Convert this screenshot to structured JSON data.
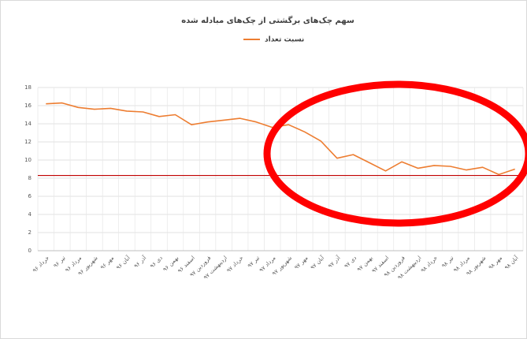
{
  "chart_data": {
    "type": "line",
    "title": "سهم چک‌های برگشتی از چک‌های مبادله شده",
    "categories": [
      "خرداد ۹۶",
      "تیر ۹۶",
      "مرداد ۹۶",
      "شهریور ۹۶",
      "مهر ۹۶",
      "آبان ۹۶",
      "آذر ۹۶",
      "دی ۹۶",
      "بهمن ۹۶",
      "اسفند ۹۶",
      "فروردین ۹۷",
      "اردیبهشت ۹۷",
      "خرداد ۹۷",
      "تیر ۹۷",
      "مرداد ۹۷",
      "شهریور ۹۷",
      "مهر ۹۷",
      "آبان ۹۷",
      "آذر ۹۷",
      "دی ۹۷",
      "بهمن ۹۷",
      "اسفند ۹۷",
      "فروردین ۹۸",
      "اردیبهشت ۹۸",
      "خرداد ۹۸",
      "تیر ۹۸",
      "مرداد ۹۸",
      "شهریور ۹۸",
      "مهر ۹۸",
      "آبان ۹۸"
    ],
    "series": [
      {
        "name": "نسبت تعداد",
        "color": "#ed7d31",
        "values": [
          16.2,
          16.3,
          15.8,
          15.6,
          15.7,
          15.4,
          15.3,
          14.8,
          15.0,
          13.9,
          14.2,
          14.4,
          14.6,
          14.2,
          13.6,
          13.9,
          13.1,
          12.1,
          10.2,
          10.6,
          9.7,
          8.8,
          9.8,
          9.1,
          9.4,
          9.3,
          8.9,
          9.2,
          8.4,
          9.0
        ]
      }
    ],
    "ylim": [
      0,
      18
    ],
    "yticks": [
      0,
      2,
      4,
      6,
      8,
      10,
      12,
      14,
      16,
      18
    ],
    "grid": true,
    "reference_line": {
      "value": 8.3,
      "color": "#c00000"
    }
  }
}
